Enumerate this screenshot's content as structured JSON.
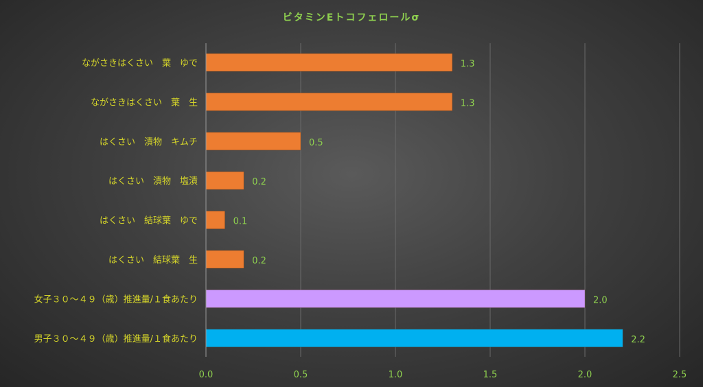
{
  "chart_data": {
    "type": "bar",
    "orientation": "horizontal",
    "title": "ビタミンEトコフェロールσ",
    "categories": [
      "ながさきはくさい　葉　ゆで",
      "ながさきはくさい　葉　生",
      "はくさい　漬物　キムチ",
      "はくさい　漬物　塩漬",
      "はくさい　結球葉　ゆで",
      "はくさい　結球葉　生",
      "女子３０～４９（歳）推進量/１食あたり",
      "男子３０～４９（歳）推進量/１食あたり"
    ],
    "values": [
      1.3,
      1.3,
      0.5,
      0.2,
      0.1,
      0.2,
      2.0,
      2.2
    ],
    "value_labels": [
      "1.3",
      "1.3",
      "0.5",
      "0.2",
      "0.1",
      "0.2",
      "2.0",
      "2.2"
    ],
    "colors": [
      "#ed7d31",
      "#ed7d31",
      "#ed7d31",
      "#ed7d31",
      "#ed7d31",
      "#ed7d31",
      "#cc99ff",
      "#00b0f0"
    ],
    "xlim": [
      0,
      2.5
    ],
    "xticks": [
      "0.0",
      "0.5",
      "1.0",
      "1.5",
      "2.0",
      "2.5"
    ],
    "grid": true,
    "legend": "none"
  }
}
